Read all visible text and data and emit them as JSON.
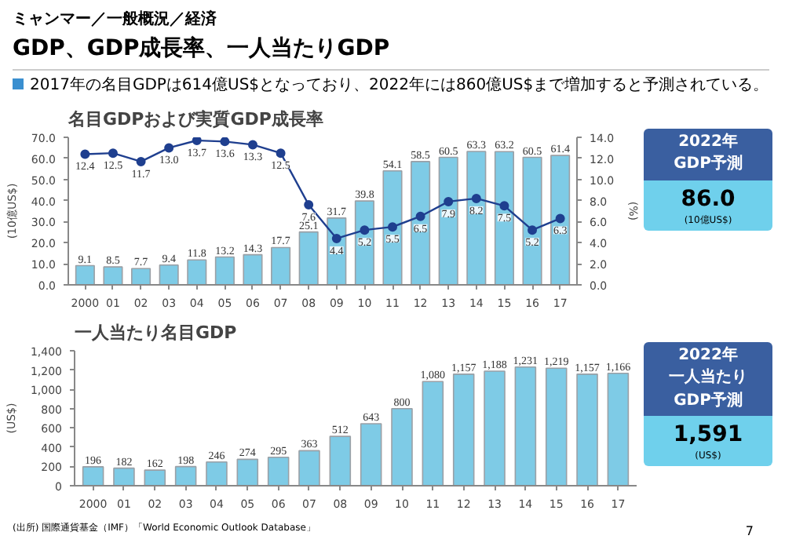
{
  "chart_data": [
    {
      "type": "bar",
      "title": "名目GDPおよび実質GDP成長率",
      "ylabel": "(10億US$)",
      "y2label": "(%)",
      "categories": [
        "2000",
        "01",
        "02",
        "03",
        "04",
        "05",
        "06",
        "07",
        "08",
        "09",
        "10",
        "11",
        "12",
        "13",
        "14",
        "15",
        "16",
        "17"
      ],
      "series": [
        {
          "type": "bar",
          "color": "#7ecbe6",
          "values": [
            9.1,
            8.5,
            7.7,
            9.4,
            11.8,
            13.2,
            14.3,
            17.7,
            25.1,
            31.7,
            39.8,
            54.1,
            58.5,
            60.5,
            63.3,
            63.2,
            60.5,
            61.4
          ]
        },
        {
          "type": "line",
          "axis": "y2",
          "color": "#1f3f8f",
          "marker": "circle",
          "values": [
            12.4,
            12.5,
            11.7,
            13.0,
            13.7,
            13.6,
            13.3,
            12.5,
            7.6,
            4.4,
            5.2,
            5.5,
            6.5,
            7.9,
            8.2,
            7.5,
            5.2,
            6.3
          ],
          "value_labels": [
            "12.4",
            "12.5",
            "11.7",
            "13.0",
            "13.7",
            "13.6",
            "13.3",
            "12.5",
            "7.6",
            "4.4",
            "5.2",
            "5.5",
            "6.5",
            "7.9",
            "8.2",
            "7.5",
            "5.2",
            "6.3"
          ]
        }
      ],
      "ylim": [
        0,
        70
      ],
      "yticks": [
        {
          "value": 0,
          "label": "0.0"
        },
        {
          "value": 10,
          "label": "10.0"
        },
        {
          "value": 20,
          "label": "20.0"
        },
        {
          "value": 30,
          "label": "30.0"
        },
        {
          "value": 40,
          "label": "40.0"
        },
        {
          "value": 50,
          "label": "50.0"
        },
        {
          "value": 60,
          "label": "60.0"
        },
        {
          "value": 70,
          "label": "70.0"
        }
      ],
      "y2lim": [
        0,
        14
      ],
      "y2ticks": [
        {
          "value": 0,
          "label": "0.0"
        },
        {
          "value": 2,
          "label": "2.0"
        },
        {
          "value": 4,
          "label": "4.0"
        },
        {
          "value": 6,
          "label": "6.0"
        },
        {
          "value": 8,
          "label": "8.0"
        },
        {
          "value": 10,
          "label": "10.0"
        },
        {
          "value": 12,
          "label": "12.0"
        },
        {
          "value": 14,
          "label": "14.0"
        }
      ],
      "data_labels": true,
      "annotations": [
        "ミャンマー／一般概況／経済",
        "GDP、GDP成長率、一人当たりGDP",
        "2017年の名目GDPは614億US$となっており、2022年には860億US$まで増加すると予測されている。",
        "2022年",
        "GDP予測",
        "86.0",
        "(10億US$)"
      ]
    },
    {
      "type": "bar",
      "title": "一人当たり名目GDP",
      "ylabel": "(US$)",
      "categories": [
        "2000",
        "01",
        "02",
        "03",
        "04",
        "05",
        "06",
        "07",
        "08",
        "09",
        "10",
        "11",
        "12",
        "13",
        "14",
        "15",
        "16",
        "17"
      ],
      "series": [
        {
          "type": "bar",
          "color": "#7ecbe6",
          "values": [
            196,
            182,
            162,
            198,
            246,
            274,
            295,
            363,
            512,
            643,
            800,
            1080,
            1157,
            1188,
            1231,
            1219,
            1157,
            1166
          ],
          "value_labels": [
            "196",
            "182",
            "162",
            "198",
            "246",
            "274",
            "295",
            "363",
            "512",
            "643",
            "800",
            "1,080",
            "1,157",
            "1,188",
            "1,231",
            "1,219",
            "1,157",
            "1,166"
          ]
        }
      ],
      "ylim": [
        0,
        1400
      ],
      "yticks": [
        0,
        200,
        400,
        600,
        800,
        {
          "value": 1000,
          "label": "1,000"
        },
        {
          "value": 1200,
          "label": "1,200"
        },
        {
          "value": 1400,
          "label": "1,400"
        }
      ],
      "annotations": [
        "2022年",
        "一人当たり",
        "GDP予測",
        "1,591",
        "(US$)",
        "(出所) 国際通貨基金（IMF）「World Economic Outlook Database」",
        "7"
      ]
    }
  ]
}
